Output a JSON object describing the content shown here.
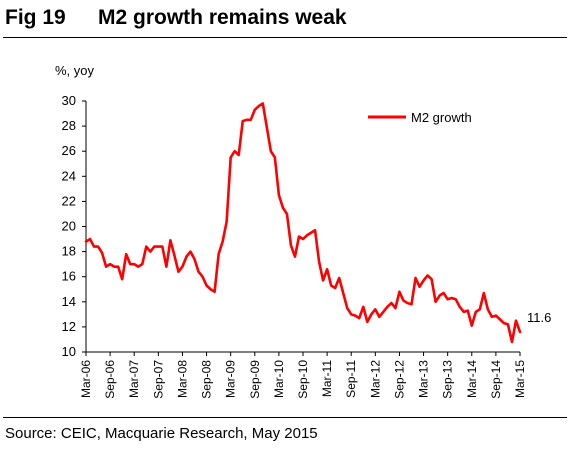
{
  "header": {
    "fig_number": "Fig 19",
    "title": "M2 growth remains weak"
  },
  "footer": {
    "source": "Source: CEIC, Macquarie Research, May 2015"
  },
  "colors": {
    "series": "#ff0000",
    "axis": "#000000",
    "text": "#000000"
  },
  "chart_data": {
    "type": "line",
    "title": "",
    "xlabel": "",
    "ylabel": "%, yoy",
    "ylim": [
      10,
      30
    ],
    "yticks": [
      10,
      12,
      14,
      16,
      18,
      20,
      22,
      24,
      26,
      28,
      30
    ],
    "x_tick_labels": [
      "Mar-06",
      "Sep-06",
      "Mar-07",
      "Sep-07",
      "Mar-08",
      "Sep-08",
      "Mar-09",
      "Sep-09",
      "Mar-10",
      "Sep-10",
      "Mar-11",
      "Sep-11",
      "Mar-12",
      "Sep-12",
      "Mar-13",
      "Sep-13",
      "Mar-14",
      "Sep-14",
      "Mar-15"
    ],
    "grid": false,
    "legend_position": "top-right",
    "annotation": "11.6",
    "x": [
      "Mar-06",
      "Apr-06",
      "May-06",
      "Jun-06",
      "Jul-06",
      "Aug-06",
      "Sep-06",
      "Oct-06",
      "Nov-06",
      "Dec-06",
      "Jan-07",
      "Feb-07",
      "Mar-07",
      "Apr-07",
      "May-07",
      "Jun-07",
      "Jul-07",
      "Aug-07",
      "Sep-07",
      "Oct-07",
      "Nov-07",
      "Dec-07",
      "Jan-08",
      "Feb-08",
      "Mar-08",
      "Apr-08",
      "May-08",
      "Jun-08",
      "Jul-08",
      "Aug-08",
      "Sep-08",
      "Oct-08",
      "Nov-08",
      "Dec-08",
      "Jan-09",
      "Feb-09",
      "Mar-09",
      "Apr-09",
      "May-09",
      "Jun-09",
      "Jul-09",
      "Aug-09",
      "Sep-09",
      "Oct-09",
      "Nov-09",
      "Dec-09",
      "Jan-10",
      "Feb-10",
      "Mar-10",
      "Apr-10",
      "May-10",
      "Jun-10",
      "Jul-10",
      "Aug-10",
      "Sep-10",
      "Oct-10",
      "Nov-10",
      "Dec-10",
      "Jan-11",
      "Feb-11",
      "Mar-11",
      "Apr-11",
      "May-11",
      "Jun-11",
      "Jul-11",
      "Aug-11",
      "Sep-11",
      "Oct-11",
      "Nov-11",
      "Dec-11",
      "Jan-12",
      "Feb-12",
      "Mar-12",
      "Apr-12",
      "May-12",
      "Jun-12",
      "Jul-12",
      "Aug-12",
      "Sep-12",
      "Oct-12",
      "Nov-12",
      "Dec-12",
      "Jan-13",
      "Feb-13",
      "Mar-13",
      "Apr-13",
      "May-13",
      "Jun-13",
      "Jul-13",
      "Aug-13",
      "Sep-13",
      "Oct-13",
      "Nov-13",
      "Dec-13",
      "Jan-14",
      "Feb-14",
      "Mar-14",
      "Apr-14",
      "May-14",
      "Jun-14",
      "Jul-14",
      "Aug-14",
      "Sep-14",
      "Oct-14",
      "Nov-14",
      "Dec-14",
      "Jan-15",
      "Feb-15",
      "Mar-15"
    ],
    "series": [
      {
        "name": "M2 growth",
        "values": [
          18.8,
          19.0,
          18.4,
          18.4,
          17.9,
          16.8,
          17.0,
          16.8,
          16.8,
          15.8,
          17.8,
          17.0,
          17.0,
          16.8,
          17.0,
          18.4,
          18.0,
          18.4,
          18.4,
          18.4,
          16.8,
          18.9,
          17.7,
          16.4,
          16.8,
          17.6,
          18.0,
          17.4,
          16.4,
          16.0,
          15.3,
          15.0,
          14.8,
          17.8,
          18.8,
          20.4,
          25.5,
          26.0,
          25.7,
          28.4,
          28.5,
          28.5,
          29.3,
          29.6,
          29.8,
          27.9,
          26.0,
          25.5,
          22.5,
          21.5,
          21.0,
          18.5,
          17.6,
          19.2,
          19.0,
          19.3,
          19.5,
          19.7,
          17.2,
          15.7,
          16.6,
          15.3,
          15.1,
          15.9,
          14.7,
          13.5,
          13.0,
          12.9,
          12.7,
          13.6,
          12.4,
          13.0,
          13.4,
          12.8,
          13.2,
          13.6,
          13.9,
          13.5,
          14.8,
          14.1,
          13.9,
          13.8,
          15.9,
          15.2,
          15.7,
          16.1,
          15.8,
          14.0,
          14.5,
          14.7,
          14.2,
          14.3,
          14.2,
          13.6,
          13.2,
          13.3,
          12.1,
          13.2,
          13.4,
          14.7,
          13.4,
          12.8,
          12.9,
          12.6,
          12.3,
          12.2,
          10.8,
          12.5,
          11.6
        ]
      }
    ]
  }
}
